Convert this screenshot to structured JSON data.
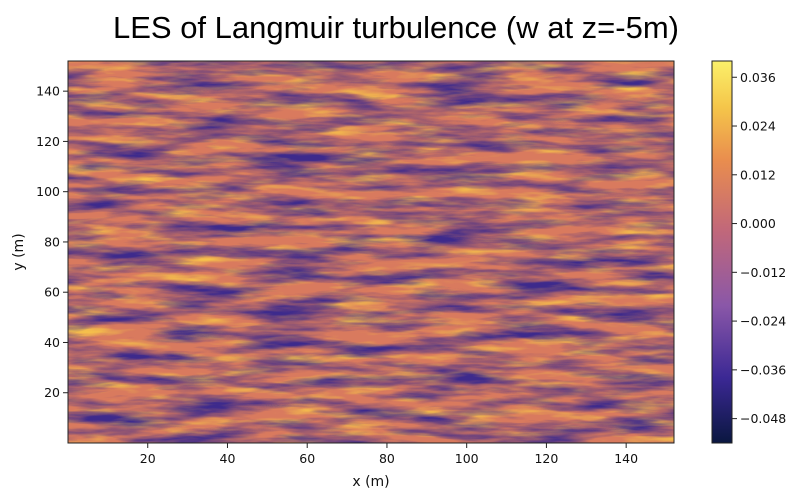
{
  "chart_data": {
    "type": "heatmap",
    "title": "LES of Langmuir turbulence  (w at z=-5m)",
    "xlabel": "x (m)",
    "ylabel": "y (m)",
    "xlim": [
      0,
      152
    ],
    "ylim": [
      0,
      152
    ],
    "x_ticks": [
      20,
      40,
      60,
      80,
      100,
      120,
      140
    ],
    "y_ticks": [
      20,
      40,
      60,
      80,
      100,
      120,
      140
    ],
    "field": "w",
    "depth_m": -5,
    "colorbar": {
      "vmin": -0.054,
      "vmax": 0.04,
      "ticks": [
        0.036,
        0.024,
        0.012,
        0.0,
        -0.012,
        -0.024,
        -0.036,
        -0.048
      ],
      "tick_labels": [
        "0.036",
        "0.024",
        "0.012",
        "0.000",
        "−0.012",
        "−0.024",
        "−0.036",
        "−0.048"
      ],
      "colormap_stops": [
        "#0a1740",
        "#3b2894",
        "#8a57a8",
        "#c26879",
        "#e98d4e",
        "#f5c64a",
        "#fbf06a"
      ]
    }
  }
}
